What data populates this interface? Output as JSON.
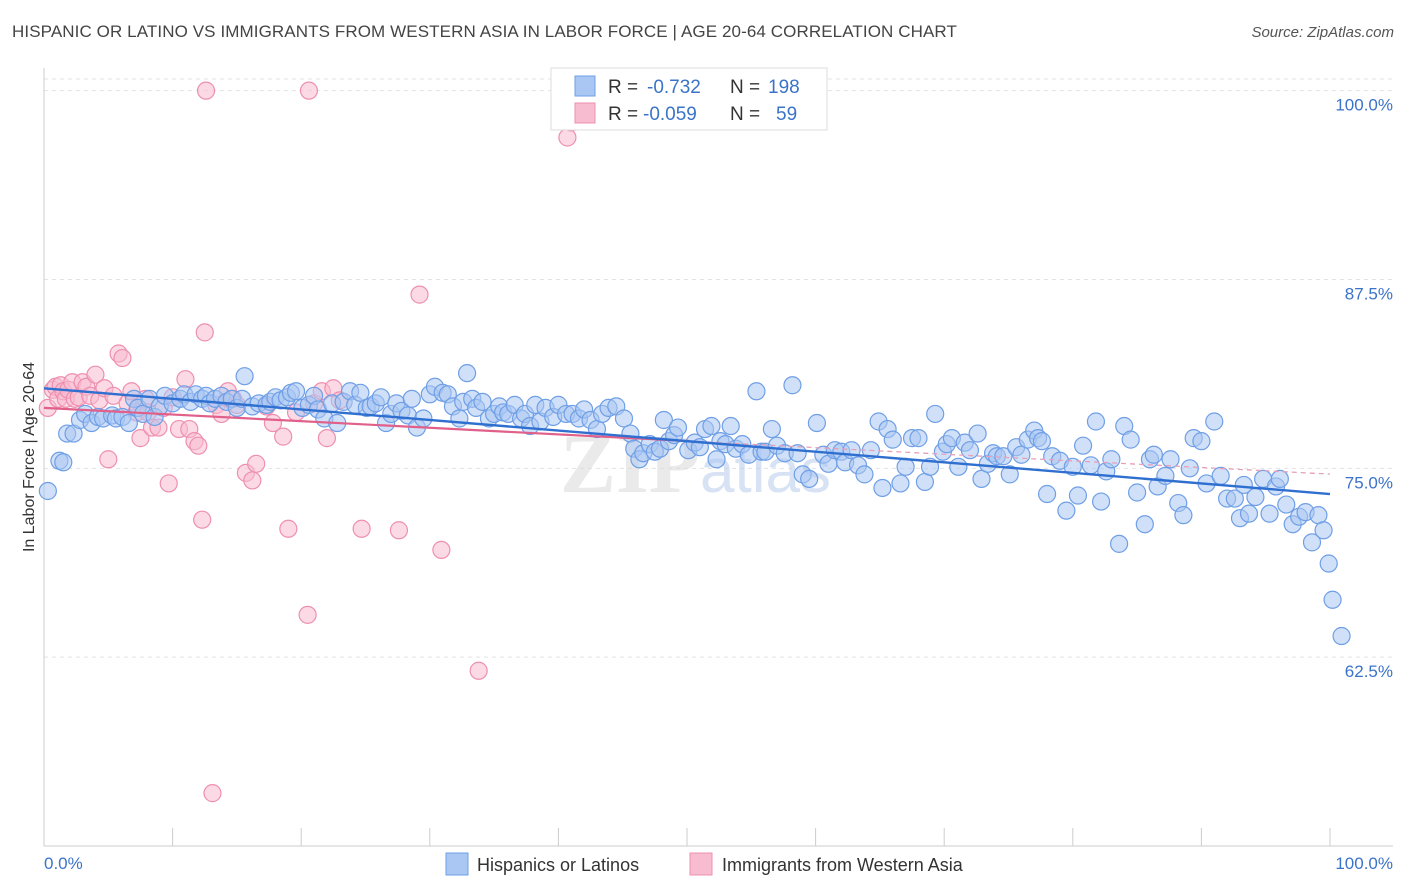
{
  "title": "HISPANIC OR LATINO VS IMMIGRANTS FROM WESTERN ASIA IN LABOR FORCE | AGE 20-64 CORRELATION CHART",
  "source": "Source: ZipAtlas.com",
  "watermark": "ZIPatlas",
  "chart_data": {
    "type": "scatter",
    "title": "HISPANIC OR LATINO VS IMMIGRANTS FROM WESTERN ASIA IN LABOR FORCE | AGE 20-64 CORRELATION CHART",
    "xlabel": "",
    "ylabel": "In Labor Force | Age 20-64",
    "xlim": [
      0,
      100
    ],
    "ylim": [
      50,
      101.5
    ],
    "x_tick_labels": [
      "0.0%",
      "100.0%"
    ],
    "y_ticks": [
      62.5,
      75.0,
      87.5,
      100.0
    ],
    "y_tick_labels": [
      "62.5%",
      "75.0%",
      "87.5%",
      "100.0%"
    ],
    "grid": true,
    "legend_placement": "top-center",
    "legend_stats": [
      {
        "r_label": "R =",
        "r_value": "-0.732",
        "n_label": "N =",
        "n_value": "198"
      },
      {
        "r_label": "R =",
        "r_value": "-0.059",
        "n_label": "N =",
        "n_value": "59"
      }
    ],
    "series": [
      {
        "name": "Hispanics or Latinos",
        "color": "#6f9fe6",
        "fill": "#a9c7f2",
        "trend": {
          "x": [
            0,
            100
          ],
          "y": [
            80.3,
            73.3
          ]
        },
        "points": [
          [
            0.3,
            73.5
          ],
          [
            1.2,
            75.5
          ],
          [
            1.5,
            75.4
          ],
          [
            1.8,
            77.3
          ],
          [
            2.3,
            77.3
          ],
          [
            2.8,
            78.2
          ],
          [
            3.2,
            78.6
          ],
          [
            3.7,
            78.0
          ],
          [
            4.2,
            78.4
          ],
          [
            4.6,
            78.3
          ],
          [
            5.3,
            78.5
          ],
          [
            5.6,
            78.3
          ],
          [
            6.1,
            78.4
          ],
          [
            6.6,
            78.0
          ],
          [
            7.0,
            79.6
          ],
          [
            7.3,
            79.0
          ],
          [
            7.7,
            78.6
          ],
          [
            8.2,
            79.6
          ],
          [
            8.6,
            78.4
          ],
          [
            9.0,
            79.1
          ],
          [
            9.4,
            79.8
          ],
          [
            10.0,
            79.3
          ],
          [
            10.6,
            79.6
          ],
          [
            10.9,
            79.9
          ],
          [
            11.4,
            79.4
          ],
          [
            11.8,
            79.9
          ],
          [
            12.3,
            79.6
          ],
          [
            12.6,
            79.8
          ],
          [
            12.9,
            79.3
          ],
          [
            13.3,
            79.6
          ],
          [
            13.8,
            79.8
          ],
          [
            14.2,
            79.4
          ],
          [
            14.6,
            79.6
          ],
          [
            15.0,
            79.0
          ],
          [
            15.4,
            79.6
          ],
          [
            15.6,
            81.1
          ],
          [
            16.2,
            79.1
          ],
          [
            16.7,
            79.3
          ],
          [
            17.3,
            79.2
          ],
          [
            17.6,
            79.4
          ],
          [
            18.0,
            79.7
          ],
          [
            18.4,
            79.5
          ],
          [
            18.9,
            79.7
          ],
          [
            19.2,
            80.0
          ],
          [
            19.6,
            80.1
          ],
          [
            20.1,
            79.0
          ],
          [
            20.6,
            79.2
          ],
          [
            21.0,
            79.8
          ],
          [
            21.3,
            78.9
          ],
          [
            21.8,
            78.3
          ],
          [
            22.4,
            79.3
          ],
          [
            22.8,
            78.0
          ],
          [
            23.3,
            79.4
          ],
          [
            23.8,
            80.1
          ],
          [
            24.2,
            79.2
          ],
          [
            24.6,
            80.0
          ],
          [
            25.1,
            79.0
          ],
          [
            25.4,
            79.1
          ],
          [
            25.8,
            79.3
          ],
          [
            26.2,
            79.7
          ],
          [
            26.6,
            78.0
          ],
          [
            27.0,
            78.6
          ],
          [
            27.4,
            79.3
          ],
          [
            27.8,
            78.8
          ],
          [
            28.3,
            78.5
          ],
          [
            28.6,
            79.6
          ],
          [
            29.0,
            77.7
          ],
          [
            29.5,
            78.3
          ],
          [
            30.0,
            79.9
          ],
          [
            30.4,
            80.4
          ],
          [
            31.0,
            80.0
          ],
          [
            31.4,
            79.9
          ],
          [
            31.8,
            79.1
          ],
          [
            32.3,
            78.3
          ],
          [
            32.6,
            79.4
          ],
          [
            32.9,
            81.3
          ],
          [
            33.3,
            79.6
          ],
          [
            33.6,
            79.0
          ],
          [
            34.1,
            79.4
          ],
          [
            34.6,
            78.3
          ],
          [
            35.0,
            78.6
          ],
          [
            35.4,
            79.1
          ],
          [
            35.7,
            78.7
          ],
          [
            36.1,
            78.6
          ],
          [
            36.6,
            79.2
          ],
          [
            37.1,
            78.3
          ],
          [
            37.4,
            78.6
          ],
          [
            37.8,
            77.8
          ],
          [
            38.2,
            79.2
          ],
          [
            38.6,
            78.1
          ],
          [
            39.0,
            79.0
          ],
          [
            39.6,
            78.4
          ],
          [
            40.0,
            79.2
          ],
          [
            40.6,
            78.6
          ],
          [
            41.1,
            78.6
          ],
          [
            41.6,
            78.3
          ],
          [
            42.0,
            78.9
          ],
          [
            42.5,
            78.2
          ],
          [
            43.0,
            77.6
          ],
          [
            43.4,
            78.6
          ],
          [
            43.9,
            79.0
          ],
          [
            44.5,
            79.1
          ],
          [
            45.1,
            78.3
          ],
          [
            45.6,
            77.3
          ],
          [
            45.9,
            76.3
          ],
          [
            46.3,
            75.6
          ],
          [
            46.6,
            76.0
          ],
          [
            47.1,
            76.6
          ],
          [
            47.5,
            76.1
          ],
          [
            47.9,
            76.3
          ],
          [
            48.2,
            78.2
          ],
          [
            48.6,
            76.8
          ],
          [
            49.0,
            77.2
          ],
          [
            49.3,
            77.7
          ],
          [
            50.1,
            76.2
          ],
          [
            50.6,
            76.7
          ],
          [
            51.0,
            76.4
          ],
          [
            51.4,
            77.6
          ],
          [
            51.9,
            77.8
          ],
          [
            52.3,
            75.6
          ],
          [
            52.6,
            76.8
          ],
          [
            53.0,
            76.6
          ],
          [
            53.4,
            77.8
          ],
          [
            53.8,
            76.3
          ],
          [
            54.3,
            76.6
          ],
          [
            54.8,
            75.9
          ],
          [
            55.4,
            80.1
          ],
          [
            55.8,
            76.1
          ],
          [
            56.1,
            76.1
          ],
          [
            56.6,
            77.6
          ],
          [
            57.0,
            76.5
          ],
          [
            57.6,
            76.0
          ],
          [
            58.2,
            80.5
          ],
          [
            58.6,
            76.0
          ],
          [
            59.0,
            74.6
          ],
          [
            59.5,
            74.3
          ],
          [
            60.1,
            78.0
          ],
          [
            60.6,
            75.9
          ],
          [
            61.0,
            75.3
          ],
          [
            61.5,
            76.2
          ],
          [
            62.0,
            76.1
          ],
          [
            62.3,
            75.4
          ],
          [
            62.8,
            76.2
          ],
          [
            63.3,
            75.2
          ],
          [
            63.8,
            74.6
          ],
          [
            64.3,
            76.2
          ],
          [
            64.9,
            78.1
          ],
          [
            65.2,
            73.7
          ],
          [
            65.6,
            77.6
          ],
          [
            66.0,
            76.9
          ],
          [
            66.6,
            74.0
          ],
          [
            67.0,
            75.1
          ],
          [
            67.5,
            77.0
          ],
          [
            68.0,
            77.0
          ],
          [
            68.5,
            74.1
          ],
          [
            68.9,
            75.1
          ],
          [
            69.3,
            78.6
          ],
          [
            69.9,
            76.1
          ],
          [
            70.2,
            76.6
          ],
          [
            70.6,
            77.0
          ],
          [
            71.1,
            75.1
          ],
          [
            71.6,
            76.7
          ],
          [
            72.0,
            76.2
          ],
          [
            72.6,
            77.3
          ],
          [
            72.9,
            74.3
          ],
          [
            73.4,
            75.3
          ],
          [
            73.8,
            76.0
          ],
          [
            74.1,
            75.8
          ],
          [
            74.6,
            75.8
          ],
          [
            75.1,
            74.6
          ],
          [
            75.6,
            76.4
          ],
          [
            76.0,
            75.9
          ],
          [
            76.5,
            76.9
          ],
          [
            77.0,
            77.5
          ],
          [
            77.3,
            77.0
          ],
          [
            77.6,
            76.8
          ],
          [
            78.0,
            73.3
          ],
          [
            78.4,
            75.8
          ],
          [
            79.0,
            75.5
          ],
          [
            79.5,
            72.2
          ],
          [
            80.0,
            75.1
          ],
          [
            80.4,
            73.2
          ],
          [
            80.8,
            76.5
          ],
          [
            81.4,
            75.2
          ],
          [
            81.8,
            78.1
          ],
          [
            82.2,
            72.8
          ],
          [
            82.6,
            74.8
          ],
          [
            83.0,
            75.6
          ],
          [
            83.6,
            70.0
          ],
          [
            84.0,
            77.8
          ],
          [
            84.5,
            76.9
          ],
          [
            85.0,
            73.4
          ],
          [
            85.6,
            71.3
          ],
          [
            86.0,
            75.6
          ],
          [
            86.3,
            75.9
          ],
          [
            86.6,
            73.8
          ],
          [
            87.2,
            74.5
          ],
          [
            87.6,
            75.6
          ],
          [
            88.2,
            72.7
          ],
          [
            88.6,
            71.9
          ],
          [
            89.1,
            75.0
          ],
          [
            89.4,
            77.0
          ],
          [
            90.0,
            76.8
          ],
          [
            90.4,
            74.0
          ],
          [
            91.0,
            78.1
          ],
          [
            91.5,
            74.5
          ],
          [
            92.0,
            73.0
          ],
          [
            92.6,
            73.0
          ],
          [
            93.0,
            71.7
          ],
          [
            93.3,
            73.9
          ],
          [
            93.7,
            72.0
          ],
          [
            94.2,
            73.1
          ],
          [
            94.8,
            74.3
          ],
          [
            95.3,
            72.0
          ],
          [
            95.8,
            73.8
          ],
          [
            96.1,
            74.3
          ],
          [
            96.6,
            72.6
          ],
          [
            97.1,
            71.3
          ],
          [
            97.6,
            71.8
          ],
          [
            98.1,
            72.1
          ],
          [
            98.6,
            70.1
          ],
          [
            99.1,
            71.9
          ],
          [
            99.5,
            70.9
          ],
          [
            99.9,
            68.7
          ],
          [
            100.2,
            66.3
          ],
          [
            100.9,
            63.9
          ]
        ]
      },
      {
        "name": "Immigrants from Western Asia",
        "color": "#ee8fb0",
        "fill": "#f7bcd0",
        "trend": {
          "x": [
            0,
            50.2
          ],
          "y": [
            79.0,
            76.8
          ]
        },
        "points": [
          [
            0.3,
            79.0
          ],
          [
            0.7,
            80.2
          ],
          [
            0.9,
            80.4
          ],
          [
            1.1,
            79.6
          ],
          [
            1.3,
            80.5
          ],
          [
            1.5,
            80.1
          ],
          [
            1.7,
            79.6
          ],
          [
            1.9,
            80.2
          ],
          [
            2.2,
            80.7
          ],
          [
            2.4,
            79.6
          ],
          [
            2.7,
            79.7
          ],
          [
            3.0,
            80.7
          ],
          [
            3.3,
            80.4
          ],
          [
            3.6,
            79.8
          ],
          [
            4.0,
            81.2
          ],
          [
            4.3,
            79.5
          ],
          [
            4.7,
            80.3
          ],
          [
            5.0,
            75.6
          ],
          [
            5.4,
            79.8
          ],
          [
            5.8,
            82.6
          ],
          [
            6.1,
            82.3
          ],
          [
            6.5,
            79.3
          ],
          [
            6.8,
            80.1
          ],
          [
            7.2,
            78.7
          ],
          [
            7.5,
            77.0
          ],
          [
            7.9,
            79.6
          ],
          [
            8.1,
            78.7
          ],
          [
            8.4,
            77.7
          ],
          [
            8.9,
            77.7
          ],
          [
            9.3,
            79.0
          ],
          [
            9.7,
            74.0
          ],
          [
            10.0,
            79.7
          ],
          [
            10.5,
            77.6
          ],
          [
            11.0,
            80.9
          ],
          [
            11.3,
            77.6
          ],
          [
            11.7,
            76.8
          ],
          [
            12.0,
            76.5
          ],
          [
            12.3,
            71.6
          ],
          [
            12.5,
            84.0
          ],
          [
            13.4,
            79.2
          ],
          [
            13.8,
            78.6
          ],
          [
            14.3,
            80.1
          ],
          [
            14.7,
            79.6
          ],
          [
            15.0,
            79.2
          ],
          [
            15.7,
            74.7
          ],
          [
            16.2,
            74.2
          ],
          [
            16.5,
            75.3
          ],
          [
            17.3,
            79.1
          ],
          [
            17.8,
            78.0
          ],
          [
            18.6,
            77.1
          ],
          [
            19.0,
            71.0
          ],
          [
            19.6,
            78.7
          ],
          [
            20.5,
            65.3
          ],
          [
            21.0,
            79.3
          ],
          [
            21.6,
            80.1
          ],
          [
            22.0,
            77.0
          ],
          [
            22.5,
            80.3
          ],
          [
            23.0,
            79.5
          ],
          [
            24.7,
            71.0
          ],
          [
            27.6,
            70.9
          ],
          [
            29.2,
            86.5
          ],
          [
            30.9,
            69.6
          ],
          [
            33.8,
            61.6
          ],
          [
            40.7,
            96.9
          ],
          [
            41.0,
            97.9
          ],
          [
            12.6,
            100.0
          ],
          [
            20.6,
            100.0
          ],
          [
            13.1,
            53.5
          ]
        ]
      }
    ]
  }
}
